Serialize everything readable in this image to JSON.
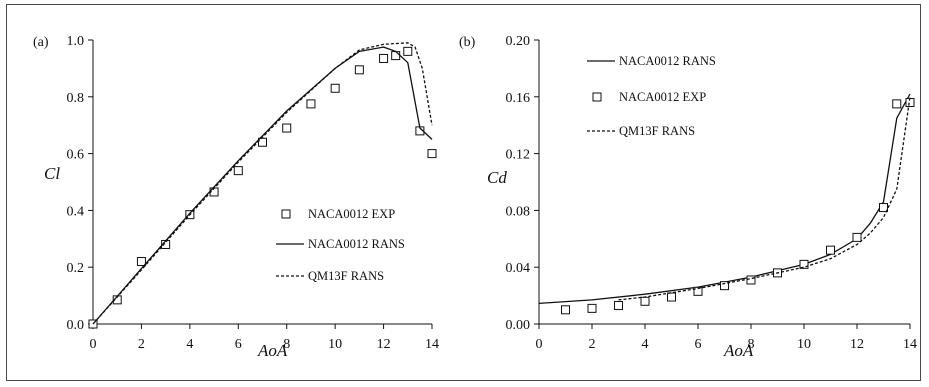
{
  "colors": {
    "ink": "#111111",
    "frame": "#4a4a4a"
  },
  "chart_data": [
    {
      "panel": "(a)",
      "type": "line",
      "xlabel": "AoA",
      "ylabel": "Cl",
      "xlim": [
        0,
        14
      ],
      "ylim": [
        0,
        1.0
      ],
      "x_ticks": [
        "0",
        "2",
        "4",
        "6",
        "8",
        "10",
        "12",
        "14"
      ],
      "y_ticks": [
        "0.0",
        "0.2",
        "0.4",
        "0.6",
        "0.8",
        "1.0"
      ],
      "legend_position": "right-middle",
      "grid": false,
      "series": [
        {
          "name": "NACA0012 EXP",
          "style": "square-marker",
          "x": [
            0,
            1,
            2,
            3,
            4,
            5,
            6,
            7,
            8,
            9,
            10,
            11,
            12,
            12.5,
            13,
            13.5,
            14
          ],
          "y": [
            0.0,
            0.085,
            0.22,
            0.28,
            0.385,
            0.465,
            0.54,
            0.64,
            0.69,
            0.775,
            0.83,
            0.895,
            0.935,
            0.945,
            0.96,
            0.68,
            0.6
          ]
        },
        {
          "name": "NACA0012 RANS",
          "style": "solid",
          "x": [
            0,
            2,
            4,
            6,
            8,
            10,
            11,
            12,
            12.5,
            13,
            13.5,
            14
          ],
          "y": [
            0.0,
            0.195,
            0.39,
            0.575,
            0.75,
            0.9,
            0.96,
            0.975,
            0.96,
            0.92,
            0.69,
            0.65
          ]
        },
        {
          "name": "QM13F RANS",
          "style": "dashed",
          "x": [
            0,
            2,
            4,
            6,
            8,
            10,
            11,
            12,
            13,
            13.3,
            13.6,
            14
          ],
          "y": [
            0.0,
            0.19,
            0.385,
            0.57,
            0.745,
            0.9,
            0.965,
            0.985,
            0.99,
            0.975,
            0.9,
            0.7
          ]
        }
      ]
    },
    {
      "panel": "(b)",
      "type": "line",
      "xlabel": "AoA",
      "ylabel": "Cd",
      "xlim": [
        0,
        14
      ],
      "ylim": [
        0,
        0.2
      ],
      "x_ticks": [
        "0",
        "2",
        "4",
        "6",
        "8",
        "10",
        "12",
        "14"
      ],
      "y_ticks": [
        "0.00",
        "0.04",
        "0.08",
        "0.12",
        "0.16",
        "0.20"
      ],
      "legend_position": "top-left",
      "grid": false,
      "series": [
        {
          "name": "NACA0012 RANS",
          "style": "solid",
          "x": [
            0,
            2,
            4,
            6,
            8,
            10,
            11,
            12,
            12.5,
            13,
            13.5,
            14
          ],
          "y": [
            0.0145,
            0.017,
            0.021,
            0.026,
            0.033,
            0.042,
            0.049,
            0.06,
            0.071,
            0.086,
            0.145,
            0.162
          ]
        },
        {
          "name": "NACA0012 EXP",
          "style": "square-marker",
          "x": [
            1,
            2,
            3,
            4,
            5,
            6,
            7,
            8,
            9,
            10,
            11,
            12,
            13,
            13.5,
            14
          ],
          "y": [
            0.01,
            0.011,
            0.013,
            0.016,
            0.019,
            0.023,
            0.027,
            0.031,
            0.036,
            0.042,
            0.052,
            0.061,
            0.082,
            0.155,
            0.156
          ]
        },
        {
          "name": "QM13F RANS",
          "style": "dashed",
          "x": [
            3,
            4,
            6,
            8,
            10,
            11,
            12,
            12.5,
            13,
            13.5,
            14
          ],
          "y": [
            0.017,
            0.019,
            0.025,
            0.032,
            0.04,
            0.046,
            0.056,
            0.064,
            0.075,
            0.095,
            0.16
          ]
        }
      ]
    }
  ]
}
